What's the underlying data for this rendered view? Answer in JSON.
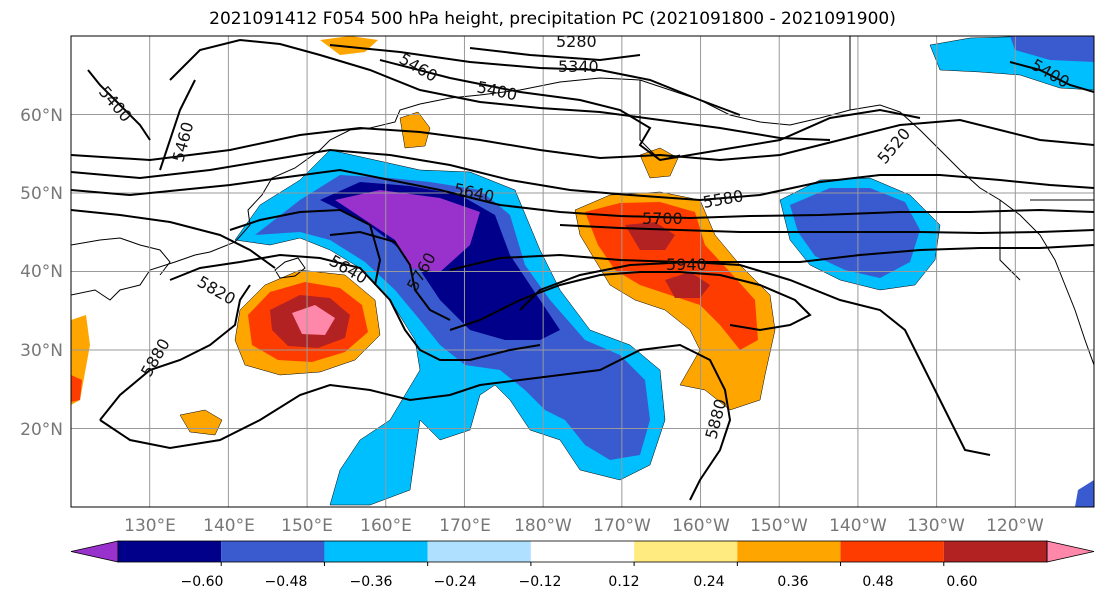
{
  "title": "2021091412 F054 500 hPa height, precipitation PC (2021091800 - 2021091900)",
  "lat_labels": [
    "60°N",
    "50°N",
    "40°N",
    "30°N",
    "20°N"
  ],
  "lon_labels": [
    "130°E",
    "140°E",
    "150°E",
    "160°E",
    "170°E",
    "180°W",
    "170°W",
    "160°W",
    "150°W",
    "140°W",
    "130°W",
    "120°W"
  ],
  "colorbar": {
    "ticks": [
      "−0.60",
      "−0.48",
      "−0.36",
      "−0.24",
      "−0.12",
      "0.12",
      "0.24",
      "0.36",
      "0.48",
      "0.60"
    ],
    "colors": [
      "#9932cc",
      "#00008b",
      "#3a5bd0",
      "#00bfff",
      "#b0e0ff",
      "#ffffff",
      "#ffeb80",
      "#ffa500",
      "#ff3c00",
      "#b22222",
      "#ff88aa"
    ]
  },
  "contour_labels": [
    "5280",
    "5340",
    "5460",
    "5400",
    "5400",
    "5460",
    "5400",
    "5520",
    "5580",
    "5640",
    "5640",
    "5700",
    "5760",
    "5820",
    "5880",
    "5940",
    "5880"
  ],
  "chart_data": {
    "type": "heatmap",
    "title": "2021091412 F054 500 hPa height, precipitation PC (2021091800 - 2021091900)",
    "projection": "PlateCarree",
    "lon_range_east": [
      120,
      250
    ],
    "lat_range": [
      10,
      70
    ],
    "lat_ticks": [
      20,
      30,
      40,
      50,
      60
    ],
    "lon_ticks": [
      "130°E",
      "140°E",
      "150°E",
      "160°E",
      "170°E",
      "180°W",
      "170°W",
      "160°W",
      "150°W",
      "140°W",
      "130°W",
      "120°W"
    ],
    "contour_field": "500 hPa height (m)",
    "contour_levels": [
      5280,
      5340,
      5400,
      5460,
      5520,
      5580,
      5640,
      5700,
      5760,
      5820,
      5880,
      5940
    ],
    "fill_field": "precipitation PC",
    "fill_levels": [
      -0.6,
      -0.48,
      -0.36,
      -0.24,
      -0.12,
      0.12,
      0.24,
      0.36,
      0.48,
      0.6
    ],
    "grid": true
  }
}
